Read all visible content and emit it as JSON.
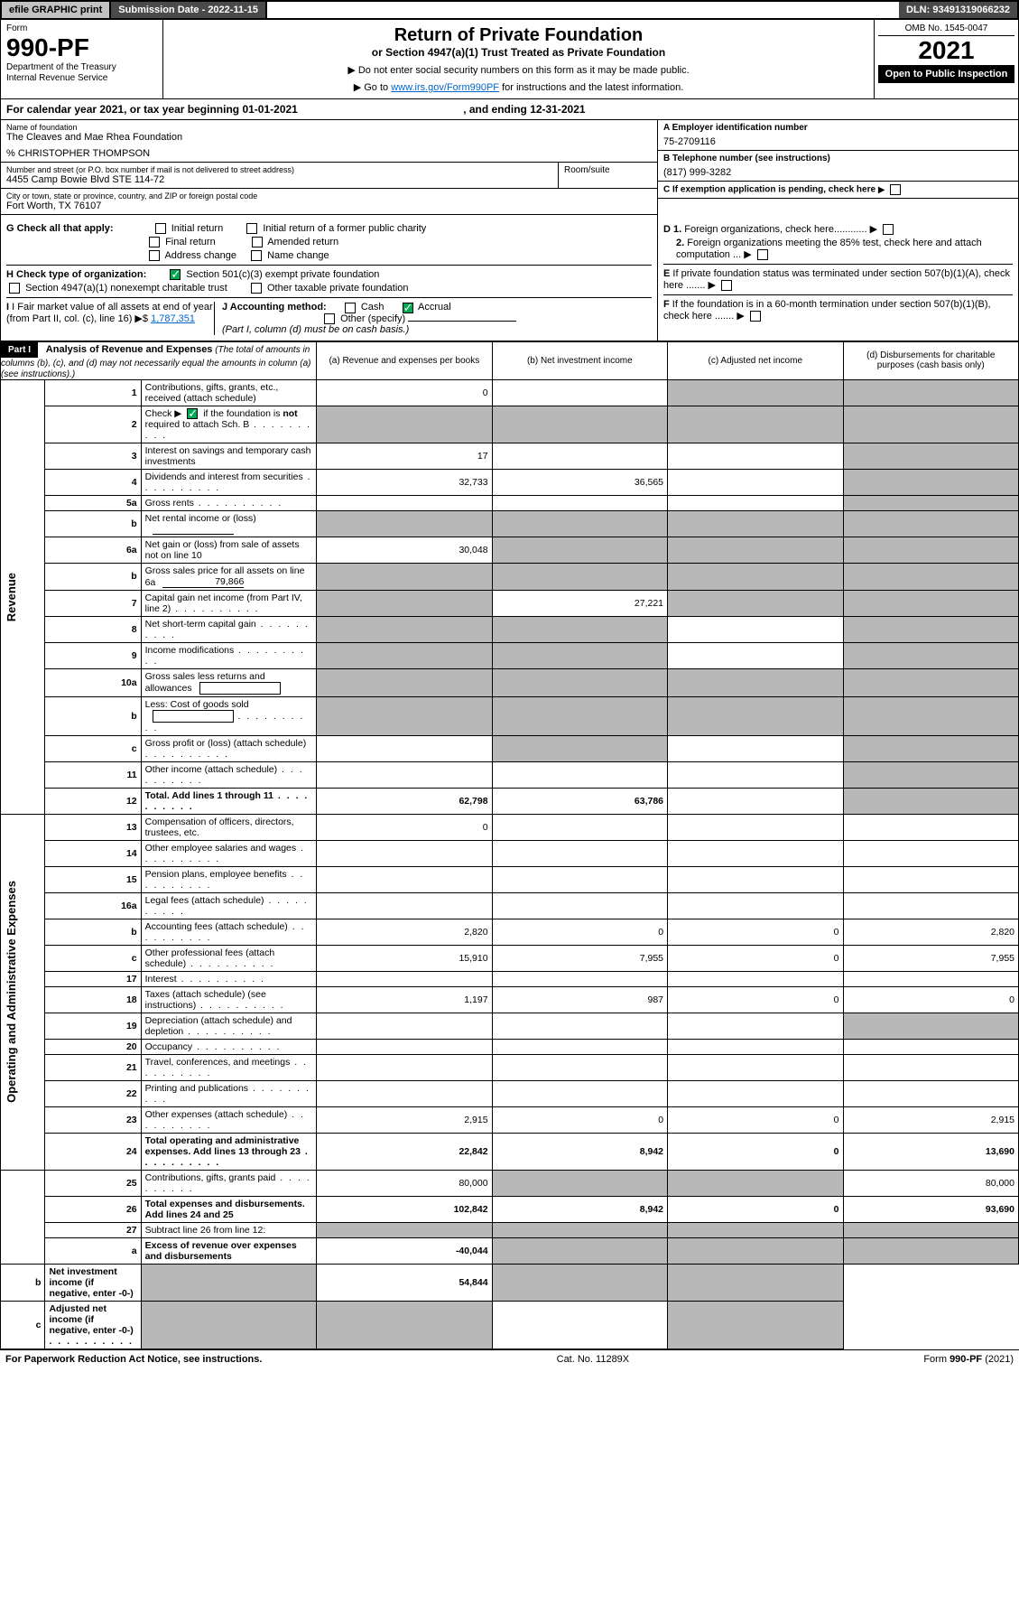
{
  "topbar": {
    "efile": "efile GRAPHIC print",
    "submission": "Submission Date - 2022-11-15",
    "dln": "DLN: 93491319066232"
  },
  "header": {
    "form_label": "Form",
    "form_number": "990-PF",
    "dept1": "Department of the Treasury",
    "dept2": "Internal Revenue Service",
    "title": "Return of Private Foundation",
    "subtitle": "or Section 4947(a)(1) Trust Treated as Private Foundation",
    "instr1": "▶ Do not enter social security numbers on this form as it may be made public.",
    "instr2_pre": "▶ Go to ",
    "instr2_link": "www.irs.gov/Form990PF",
    "instr2_post": " for instructions and the latest information.",
    "omb": "OMB No. 1545-0047",
    "year": "2021",
    "open": "Open to Public Inspection"
  },
  "calendar": {
    "pre": "For calendar year 2021, or tax year beginning ",
    "begin": "01-01-2021",
    "mid": " , and ending ",
    "end": "12-31-2021"
  },
  "info": {
    "name_label": "Name of foundation",
    "name": "The Cleaves and Mae Rhea Foundation",
    "care_of": "% CHRISTOPHER THOMPSON",
    "addr_label": "Number and street (or P.O. box number if mail is not delivered to street address)",
    "addr": "4455 Camp Bowie Blvd STE 114-72",
    "room_label": "Room/suite",
    "city_label": "City or town, state or province, country, and ZIP or foreign postal code",
    "city": "Fort Worth, TX  76107",
    "ein_label": "A Employer identification number",
    "ein": "75-2709116",
    "tel_label": "B Telephone number (see instructions)",
    "tel": "(817) 999-3282",
    "c_label": "C If exemption application is pending, check here",
    "d1": "D 1. Foreign organizations, check here............",
    "d2": "2. Foreign organizations meeting the 85% test, check here and attach computation ...",
    "e_label": "E If private foundation status was terminated under section 507(b)(1)(A), check here .......",
    "f_label": "F If the foundation is in a 60-month termination under section 507(b)(1)(B), check here .......",
    "g_label": "G Check all that apply:",
    "g_opts": [
      "Initial return",
      "Initial return of a former public charity",
      "Final return",
      "Amended return",
      "Address change",
      "Name change"
    ],
    "h_label": "H Check type of organization:",
    "h_opts": [
      "Section 501(c)(3) exempt private foundation",
      "Section 4947(a)(1) nonexempt charitable trust",
      "Other taxable private foundation"
    ],
    "i_label": "I Fair market value of all assets at end of year (from Part II, col. (c), line 16)",
    "i_value": "1,787,351",
    "j_label": "J Accounting method:",
    "j_opts": [
      "Cash",
      "Accrual"
    ],
    "j_other": "Other (specify)",
    "j_note": "(Part I, column (d) must be on cash basis.)"
  },
  "part1": {
    "label": "Part I",
    "title": "Analysis of Revenue and Expenses",
    "note": " (The total of amounts in columns (b), (c), and (d) may not necessarily equal the amounts in column (a) (see instructions).)",
    "col_a": "(a) Revenue and expenses per books",
    "col_b": "(b) Net investment income",
    "col_c": "(c) Adjusted net income",
    "col_d": "(d) Disbursements for charitable purposes (cash basis only)"
  },
  "sidebar": {
    "revenue": "Revenue",
    "expenses": "Operating and Administrative Expenses"
  },
  "rows": [
    {
      "n": "1",
      "d": "Contributions, gifts, grants, etc., received (attach schedule)",
      "a": "0",
      "b": "",
      "c": "g",
      "dd": "g"
    },
    {
      "n": "2",
      "d": "Check ▶ ☑ if the foundation is not required to attach Sch. B",
      "a": "g",
      "b": "g",
      "c": "g",
      "dd": "g",
      "dots": true
    },
    {
      "n": "3",
      "d": "Interest on savings and temporary cash investments",
      "a": "17",
      "b": "",
      "c": "",
      "dd": "g"
    },
    {
      "n": "4",
      "d": "Dividends and interest from securities",
      "a": "32,733",
      "b": "36,565",
      "c": "",
      "dd": "g",
      "dots": true
    },
    {
      "n": "5a",
      "d": "Gross rents",
      "a": "",
      "b": "",
      "c": "",
      "dd": "g",
      "dots": true
    },
    {
      "n": "b",
      "d": "Net rental income or (loss)",
      "a": "g",
      "b": "g",
      "c": "g",
      "dd": "g",
      "line": true
    },
    {
      "n": "6a",
      "d": "Net gain or (loss) from sale of assets not on line 10",
      "a": "30,048",
      "b": "g",
      "c": "g",
      "dd": "g"
    },
    {
      "n": "b",
      "d": "Gross sales price for all assets on line 6a",
      "a": "g",
      "b": "g",
      "c": "g",
      "dd": "g",
      "inline": "79,866"
    },
    {
      "n": "7",
      "d": "Capital gain net income (from Part IV, line 2)",
      "a": "g",
      "b": "27,221",
      "c": "g",
      "dd": "g",
      "dots": true
    },
    {
      "n": "8",
      "d": "Net short-term capital gain",
      "a": "g",
      "b": "g",
      "c": "",
      "dd": "g",
      "dots": true
    },
    {
      "n": "9",
      "d": "Income modifications",
      "a": "g",
      "b": "g",
      "c": "",
      "dd": "g",
      "dots": true
    },
    {
      "n": "10a",
      "d": "Gross sales less returns and allowances",
      "a": "g",
      "b": "g",
      "c": "g",
      "dd": "g",
      "box": true
    },
    {
      "n": "b",
      "d": "Less: Cost of goods sold",
      "a": "g",
      "b": "g",
      "c": "g",
      "dd": "g",
      "box": true,
      "dots": true
    },
    {
      "n": "c",
      "d": "Gross profit or (loss) (attach schedule)",
      "a": "",
      "b": "g",
      "c": "",
      "dd": "g",
      "dots": true
    },
    {
      "n": "11",
      "d": "Other income (attach schedule)",
      "a": "",
      "b": "",
      "c": "",
      "dd": "g",
      "dots": true
    },
    {
      "n": "12",
      "d": "Total. Add lines 1 through 11",
      "a": "62,798",
      "b": "63,786",
      "c": "",
      "dd": "g",
      "bold": true,
      "dots": true
    },
    {
      "n": "13",
      "d": "Compensation of officers, directors, trustees, etc.",
      "a": "0",
      "b": "",
      "c": "",
      "dd": ""
    },
    {
      "n": "14",
      "d": "Other employee salaries and wages",
      "a": "",
      "b": "",
      "c": "",
      "dd": "",
      "dots": true
    },
    {
      "n": "15",
      "d": "Pension plans, employee benefits",
      "a": "",
      "b": "",
      "c": "",
      "dd": "",
      "dots": true
    },
    {
      "n": "16a",
      "d": "Legal fees (attach schedule)",
      "a": "",
      "b": "",
      "c": "",
      "dd": "",
      "dots": true
    },
    {
      "n": "b",
      "d": "Accounting fees (attach schedule)",
      "a": "2,820",
      "b": "0",
      "c": "0",
      "dd": "2,820",
      "dots": true
    },
    {
      "n": "c",
      "d": "Other professional fees (attach schedule)",
      "a": "15,910",
      "b": "7,955",
      "c": "0",
      "dd": "7,955",
      "dots": true
    },
    {
      "n": "17",
      "d": "Interest",
      "a": "",
      "b": "",
      "c": "",
      "dd": "",
      "dots": true
    },
    {
      "n": "18",
      "d": "Taxes (attach schedule) (see instructions)",
      "a": "1,197",
      "b": "987",
      "c": "0",
      "dd": "0",
      "dots": true
    },
    {
      "n": "19",
      "d": "Depreciation (attach schedule) and depletion",
      "a": "",
      "b": "",
      "c": "",
      "dd": "g",
      "dots": true
    },
    {
      "n": "20",
      "d": "Occupancy",
      "a": "",
      "b": "",
      "c": "",
      "dd": "",
      "dots": true
    },
    {
      "n": "21",
      "d": "Travel, conferences, and meetings",
      "a": "",
      "b": "",
      "c": "",
      "dd": "",
      "dots": true
    },
    {
      "n": "22",
      "d": "Printing and publications",
      "a": "",
      "b": "",
      "c": "",
      "dd": "",
      "dots": true
    },
    {
      "n": "23",
      "d": "Other expenses (attach schedule)",
      "a": "2,915",
      "b": "0",
      "c": "0",
      "dd": "2,915",
      "dots": true
    },
    {
      "n": "24",
      "d": "Total operating and administrative expenses. Add lines 13 through 23",
      "a": "22,842",
      "b": "8,942",
      "c": "0",
      "dd": "13,690",
      "bold": true,
      "dots": true
    },
    {
      "n": "25",
      "d": "Contributions, gifts, grants paid",
      "a": "80,000",
      "b": "g",
      "c": "g",
      "dd": "80,000",
      "dots": true
    },
    {
      "n": "26",
      "d": "Total expenses and disbursements. Add lines 24 and 25",
      "a": "102,842",
      "b": "8,942",
      "c": "0",
      "dd": "93,690",
      "bold": true
    },
    {
      "n": "27",
      "d": "Subtract line 26 from line 12:",
      "a": "g",
      "b": "g",
      "c": "g",
      "dd": "g"
    },
    {
      "n": "a",
      "d": "Excess of revenue over expenses and disbursements",
      "a": "-40,044",
      "b": "g",
      "c": "g",
      "dd": "g",
      "bold": true
    },
    {
      "n": "b",
      "d": "Net investment income (if negative, enter -0-)",
      "a": "g",
      "b": "54,844",
      "c": "g",
      "dd": "g",
      "bold": true
    },
    {
      "n": "c",
      "d": "Adjusted net income (if negative, enter -0-)",
      "a": "g",
      "b": "g",
      "c": "",
      "dd": "g",
      "bold": true,
      "dots": true
    }
  ],
  "footer": {
    "left": "For Paperwork Reduction Act Notice, see instructions.",
    "center": "Cat. No. 11289X",
    "right": "Form 990-PF (2021)"
  }
}
